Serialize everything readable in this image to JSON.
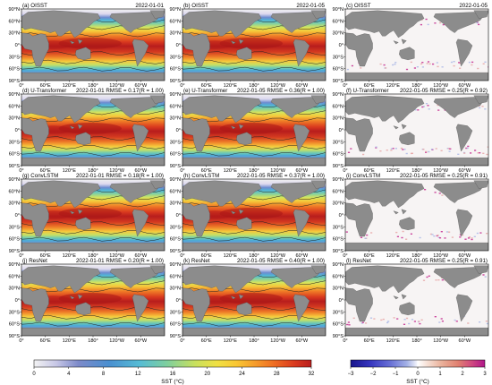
{
  "chart_data": {
    "type": "heatmap",
    "projection": "global lon-lat map",
    "panels": [
      {
        "id": "a",
        "title_left": "(a) OISST",
        "title_right": "2022-01-01",
        "field": "sst"
      },
      {
        "id": "b",
        "title_left": "(b) OISST",
        "title_right": "2022-01-05",
        "field": "sst"
      },
      {
        "id": "c",
        "title_left": "(c) OISST",
        "title_right": "2022-01-05",
        "field": "difference"
      },
      {
        "id": "d",
        "title_left": "(d) U-Transformer",
        "title_right": "2022-01-01  RMSE = 0.17(R = 1.00)",
        "field": "sst"
      },
      {
        "id": "e",
        "title_left": "(e) U-Transformer",
        "title_right": "2022-01-05  RMSE = 0.36(R = 1.00)",
        "field": "sst"
      },
      {
        "id": "f",
        "title_left": "(f) U-Transformer",
        "title_right": "2022-01-05  RMSE = 0.25(R = 0.92)",
        "field": "difference"
      },
      {
        "id": "g",
        "title_left": "(g) ConvLSTM",
        "title_right": "2022-01-01  RMSE = 0.18(R = 1.00)",
        "field": "sst"
      },
      {
        "id": "h",
        "title_left": "(h) ConvLSTM",
        "title_right": "2022-01-05  RMSE = 0.37(R = 1.00)",
        "field": "sst"
      },
      {
        "id": "i",
        "title_left": "(i) ConvLSTM",
        "title_right": "2022-01-05  RMSE = 0.25(R = 0.91)",
        "field": "difference"
      },
      {
        "id": "j",
        "title_left": "(j) ResNet",
        "title_right": "2022-01-01  RMSE = 0.20(R = 1.00)",
        "field": "sst"
      },
      {
        "id": "k",
        "title_left": "(k) ResNet",
        "title_right": "2022-01-05  RMSE = 0.40(R = 1.00)",
        "field": "sst"
      },
      {
        "id": "l",
        "title_left": "(l) ResNet",
        "title_right": "2022-01-05  RMSE = 0.25(R = 0.91)",
        "field": "difference"
      }
    ],
    "lat_ticks": [
      "90°N",
      "60°N",
      "30°N",
      "0°",
      "30°S",
      "60°S",
      "90°S"
    ],
    "lon_ticks": [
      "0°",
      "60°E",
      "120°E",
      "180°",
      "120°W",
      "60°W"
    ],
    "colorbars": [
      {
        "label": "SST (°C)",
        "ticks": [
          "0",
          "4",
          "8",
          "12",
          "16",
          "20",
          "24",
          "28",
          "32"
        ],
        "range": [
          0,
          32
        ],
        "colors": [
          "#f3f3f3",
          "#c7c7e6",
          "#7d8ac9",
          "#4a8fd0",
          "#56bcd5",
          "#7fcf9e",
          "#c8e05e",
          "#f0e043",
          "#f9c733",
          "#f59a2b",
          "#ee6a22",
          "#d93a1f",
          "#b91e1e"
        ]
      },
      {
        "label": "SST (°C)",
        "ticks": [
          "−3",
          "−2",
          "−1",
          "0",
          "1",
          "2",
          "3"
        ],
        "range": [
          -3,
          3
        ],
        "colors": [
          "#18148c",
          "#3737c0",
          "#6a72d6",
          "#a4b2e6",
          "#d6dcf2",
          "#ffffff",
          "#f5dcd0",
          "#eab099",
          "#e08070",
          "#d04a80",
          "#b0168a"
        ]
      }
    ]
  }
}
